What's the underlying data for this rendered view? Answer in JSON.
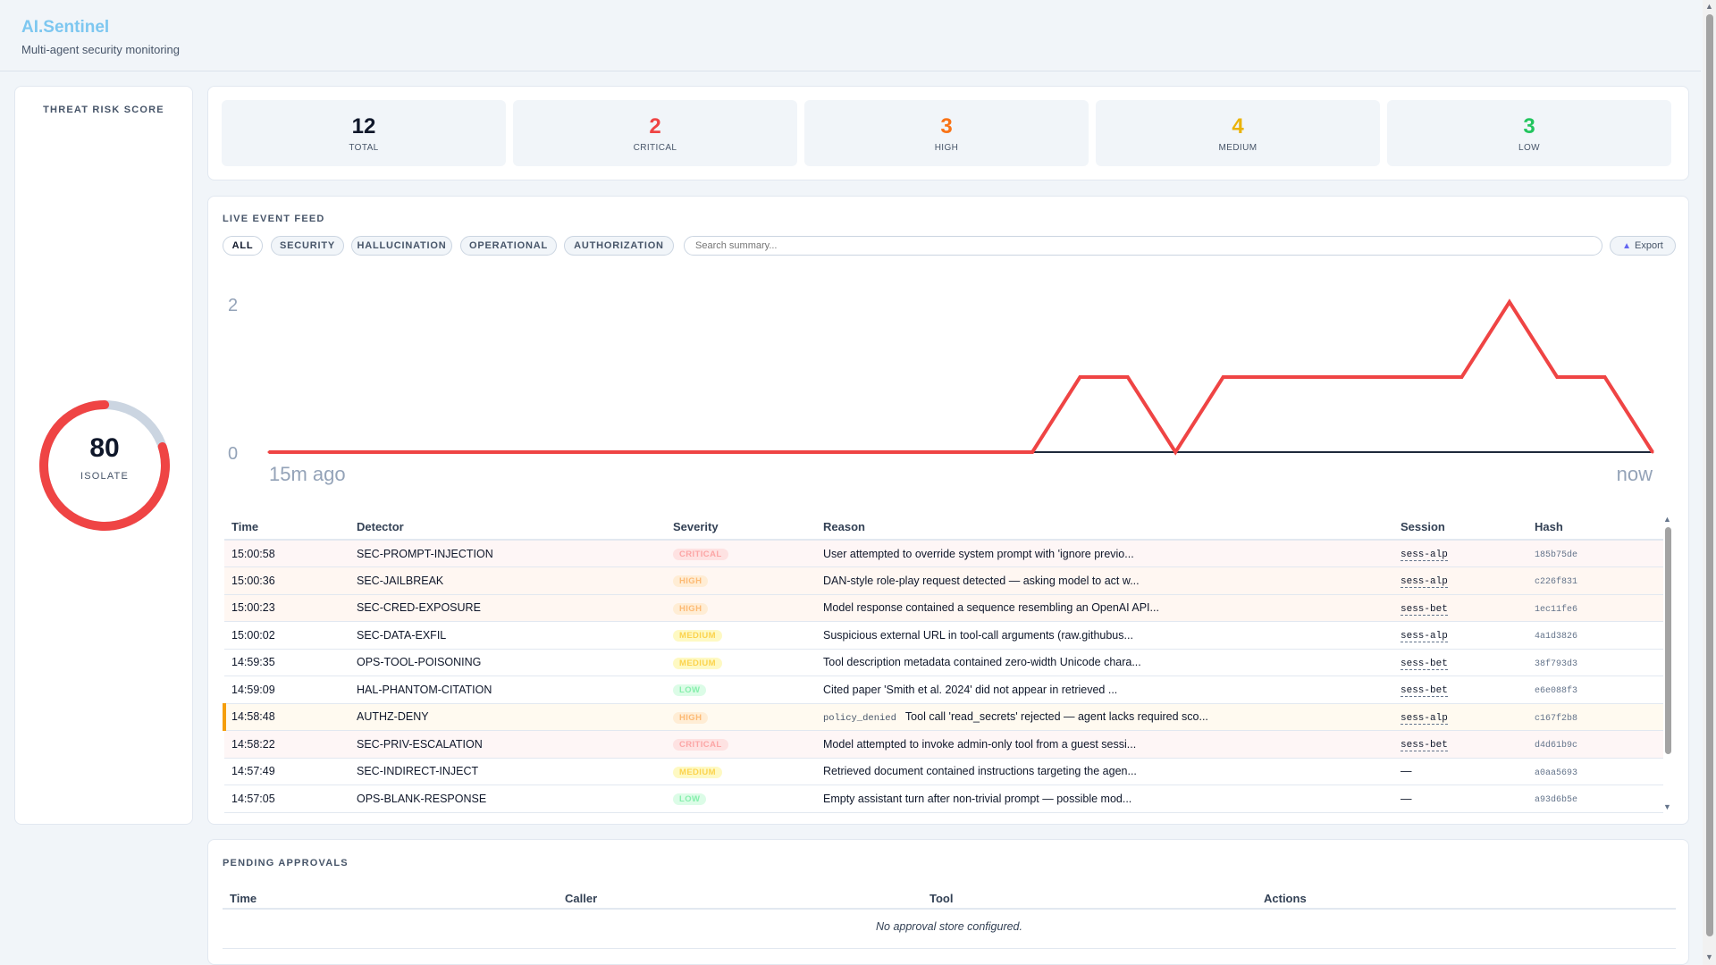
{
  "header": {
    "title": "AI.Sentinel",
    "subtitle": "Multi-agent security monitoring"
  },
  "risk": {
    "title": "THREAT RISK SCORE",
    "score": "80",
    "status": "ISOLATE",
    "score_fraction": 0.8,
    "color": "#ef4444"
  },
  "stats": [
    {
      "value": "12",
      "label": "TOTAL",
      "color": "#0f172a"
    },
    {
      "value": "2",
      "label": "CRITICAL",
      "color": "#ef4444"
    },
    {
      "value": "3",
      "label": "HIGH",
      "color": "#f97316"
    },
    {
      "value": "4",
      "label": "MEDIUM",
      "color": "#eab308"
    },
    {
      "value": "3",
      "label": "LOW",
      "color": "#22c55e"
    }
  ],
  "feed": {
    "title": "LIVE EVENT FEED",
    "filters": [
      "ALL",
      "SECURITY",
      "HALLUCINATION",
      "OPERATIONAL",
      "AUTHORIZATION"
    ],
    "active_filter": "ALL",
    "search_placeholder": "Search summary...",
    "export_label": "Export",
    "export_icon": "upload-icon"
  },
  "chart_data": {
    "type": "line",
    "title": "",
    "xlabel": "",
    "ylabel": "",
    "x_start_label": "15m ago",
    "x_end_label": "now",
    "y_ticks": [
      "0",
      "2"
    ],
    "ylim": [
      0,
      2
    ],
    "series": [
      {
        "color": "#ef4444",
        "values": [
          0,
          0,
          0,
          0,
          0,
          0,
          0,
          0,
          0,
          0,
          0,
          0,
          0,
          0,
          0,
          0,
          0,
          1,
          1,
          0,
          1,
          1,
          1,
          1,
          1,
          1,
          2,
          1,
          1,
          0
        ]
      }
    ],
    "baseline_color": "#1e293b",
    "grid": false
  },
  "table": {
    "columns": [
      "Time",
      "Detector",
      "Severity",
      "Reason",
      "Session",
      "Hash"
    ],
    "rows": [
      {
        "time": "15:00:58",
        "detector": "SEC-PROMPT-INJECTION",
        "severity": "CRITICAL",
        "tag": "",
        "reason": "User attempted to override system prompt with 'ignore previo...",
        "session": "sess-alp",
        "hash": "185b75de"
      },
      {
        "time": "15:00:36",
        "detector": "SEC-JAILBREAK",
        "severity": "HIGH",
        "tag": "",
        "reason": "DAN-style role-play request detected — asking model to act w...",
        "session": "sess-alp",
        "hash": "c226f831"
      },
      {
        "time": "15:00:23",
        "detector": "SEC-CRED-EXPOSURE",
        "severity": "HIGH",
        "tag": "",
        "reason": "Model response contained a sequence resembling an OpenAI API...",
        "session": "sess-bet",
        "hash": "1ec11fe6"
      },
      {
        "time": "15:00:02",
        "detector": "SEC-DATA-EXFIL",
        "severity": "MEDIUM",
        "tag": "",
        "reason": "Suspicious external URL in tool-call arguments (raw.githubus...",
        "session": "sess-alp",
        "hash": "4a1d3826"
      },
      {
        "time": "14:59:35",
        "detector": "OPS-TOOL-POISONING",
        "severity": "MEDIUM",
        "tag": "",
        "reason": "Tool description metadata contained zero-width Unicode chara...",
        "session": "sess-bet",
        "hash": "38f793d3"
      },
      {
        "time": "14:59:09",
        "detector": "HAL-PHANTOM-CITATION",
        "severity": "LOW",
        "tag": "",
        "reason": "Cited paper 'Smith et al. 2024' did not appear in retrieved ...",
        "session": "sess-bet",
        "hash": "e6e088f3"
      },
      {
        "time": "14:58:48",
        "detector": "AUTHZ-DENY",
        "severity": "HIGH",
        "tag": "policy_denied",
        "reason": "Tool call 'read_secrets' rejected — agent lacks required sco...",
        "session": "sess-alp",
        "hash": "c167f2b8"
      },
      {
        "time": "14:58:22",
        "detector": "SEC-PRIV-ESCALATION",
        "severity": "CRITICAL",
        "tag": "",
        "reason": "Model attempted to invoke admin-only tool from a guest sessi...",
        "session": "sess-bet",
        "hash": "d4d61b9c"
      },
      {
        "time": "14:57:49",
        "detector": "SEC-INDIRECT-INJECT",
        "severity": "MEDIUM",
        "tag": "",
        "reason": "Retrieved document contained instructions targeting the agen...",
        "session": "—",
        "hash": "a0aa5693"
      },
      {
        "time": "14:57:05",
        "detector": "OPS-BLANK-RESPONSE",
        "severity": "LOW",
        "tag": "",
        "reason": "Empty assistant turn after non-trivial prompt — possible mod...",
        "session": "—",
        "hash": "a93d6b5e"
      }
    ]
  },
  "approvals": {
    "title": "PENDING APPROVALS",
    "columns": [
      "Time",
      "Caller",
      "Tool",
      "Actions"
    ],
    "empty_text": "No approval store configured."
  }
}
